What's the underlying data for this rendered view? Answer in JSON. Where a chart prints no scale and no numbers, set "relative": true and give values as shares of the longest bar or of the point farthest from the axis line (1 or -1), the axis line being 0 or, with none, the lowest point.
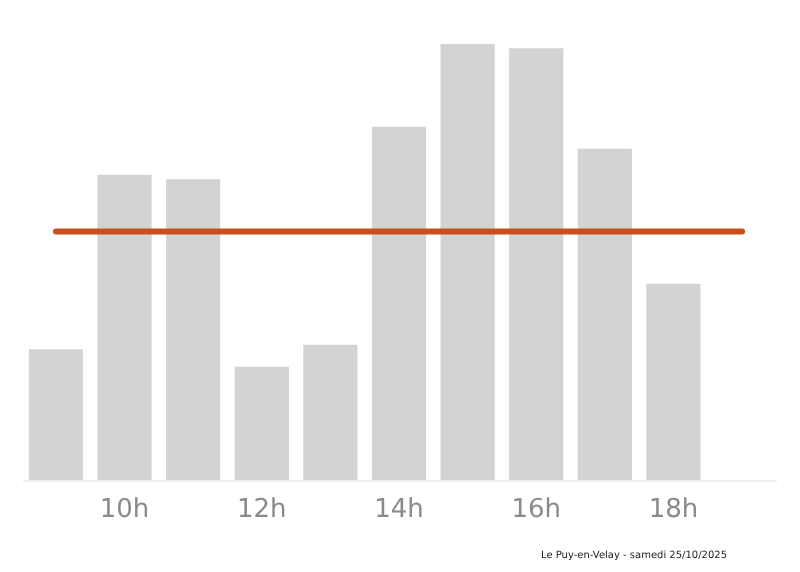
{
  "chart_data": {
    "type": "bar",
    "relative": true,
    "categories": [
      null,
      "10h",
      null,
      "12h",
      null,
      "14h",
      null,
      "16h",
      null,
      "18h",
      null
    ],
    "values": [
      0.3,
      0.7,
      0.69,
      0.26,
      0.31,
      0.81,
      1,
      0.99,
      0.76,
      0.45,
      null
    ],
    "color": "#d3d3d3",
    "ref_lines": [
      {
        "axis": "y",
        "value": 0.57,
        "color": "#c8501e"
      }
    ],
    "annotations": [
      "Le Puy-en-Velay - samedi 25/10/2025"
    ],
    "grid": false
  }
}
